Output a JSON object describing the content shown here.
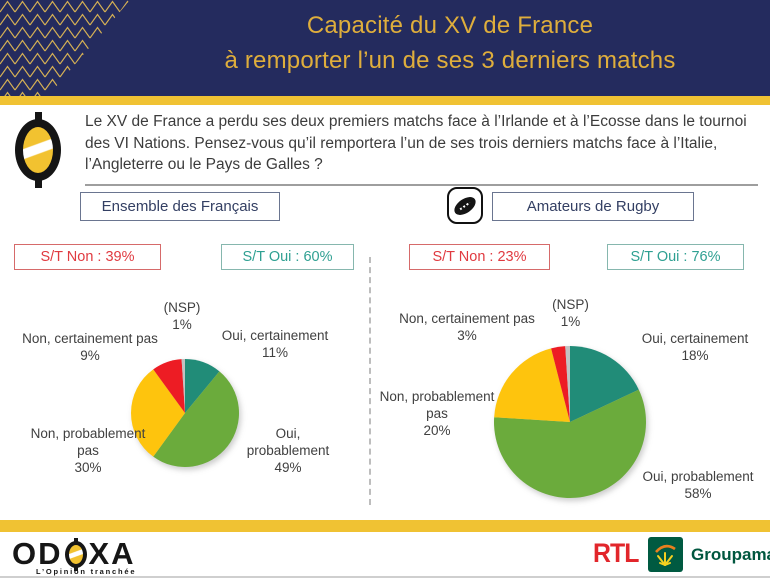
{
  "header": {
    "title_line1": "Capacité du XV de France",
    "title_line2": "à remporter l’un de ses 3 derniers matchs"
  },
  "question": {
    "text": "Le XV de France a perdu ses deux premiers matchs face à l’Irlande et à l’Ecosse dans le tournoi des VI Nations. Pensez-vous qu’il remportera l’un de ses trois derniers matchs face à l’Italie, l’Angleterre ou le Pays de Galles ?"
  },
  "chart_data": [
    {
      "type": "pie",
      "title": "Ensemble des Français",
      "start_angle_deg": -90,
      "direction": "clockwise",
      "legend": "none",
      "summary": {
        "st_non": "S/T Non : 39%",
        "st_oui": "S/T Oui : 60%"
      },
      "slices": [
        {
          "label": "Oui, certainement",
          "value": 11,
          "pct_text": "11%",
          "color": "#218C78"
        },
        {
          "label": "Oui, probablement",
          "value": 49,
          "pct_text": "49%",
          "color": "#6BAB3C"
        },
        {
          "label": "Non, probablement pas",
          "value": 30,
          "pct_text": "30%",
          "color": "#FEC40D"
        },
        {
          "label": "Non, certainement pas",
          "value": 9,
          "pct_text": "9%",
          "color": "#ED1C24"
        },
        {
          "label": "(NSP)",
          "value": 1,
          "pct_text": "1%",
          "color": "#C2C2C2"
        }
      ]
    },
    {
      "type": "pie",
      "title": "Amateurs de Rugby",
      "start_angle_deg": -90,
      "direction": "clockwise",
      "legend": "none",
      "summary": {
        "st_non": "S/T Non : 23%",
        "st_oui": "S/T Oui : 76%"
      },
      "slices": [
        {
          "label": "Oui, certainement",
          "value": 18,
          "pct_text": "18%",
          "color": "#218C78"
        },
        {
          "label": "Oui, probablement",
          "value": 58,
          "pct_text": "58%",
          "color": "#6BAB3C"
        },
        {
          "label": "Non, probablement pas",
          "value": 20,
          "pct_text": "20%",
          "color": "#FEC40D"
        },
        {
          "label": "Non, certainement pas",
          "value": 3,
          "pct_text": "3%",
          "color": "#ED1C24"
        },
        {
          "label": "(NSP)",
          "value": 1,
          "pct_text": "1%",
          "color": "#C2C2C2"
        }
      ]
    }
  ],
  "footer": {
    "odoxa_left": "OD",
    "odoxa_right": "XA",
    "odoxa_tagline": "L’Opinion tranchée",
    "rtl": "RTL",
    "groupama": "Groupama"
  },
  "colors": {
    "header_navy": "#242B5E",
    "gold": "#F0C233",
    "title_gold": "#DFAE3C",
    "st_non_red": "#E03A40",
    "st_oui_teal": "#2FA092"
  }
}
